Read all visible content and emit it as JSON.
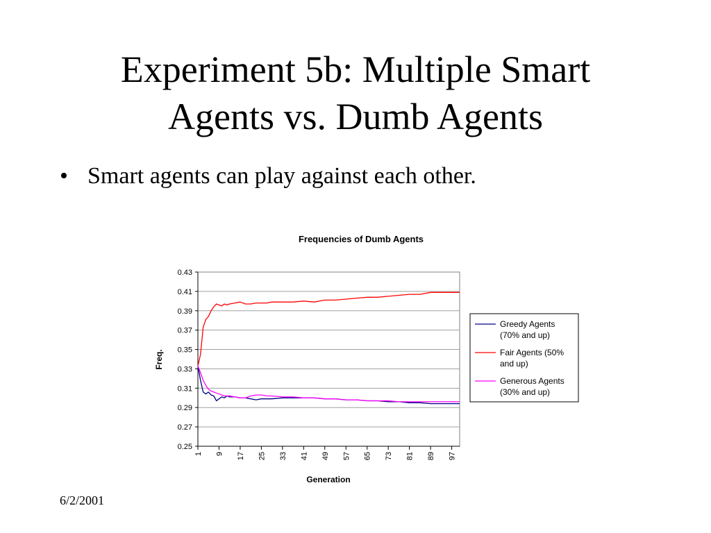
{
  "slide": {
    "title_line1": "Experiment 5b: Multiple Smart",
    "title_line2": "Agents vs. Dumb Agents",
    "bullet_marker": "•",
    "bullet": "Smart agents can play against each other.",
    "footer_date": "6/2/2001"
  },
  "chart_data": {
    "type": "line",
    "title": "Frequencies of Dumb Agents",
    "xlabel": "Generation",
    "ylabel": "Freq.",
    "xlim": [
      1,
      100
    ],
    "ylim": [
      0.25,
      0.43
    ],
    "yticks": [
      "0.25",
      "0.27",
      "0.29",
      "0.31",
      "0.33",
      "0.35",
      "0.37",
      "0.39",
      "0.41",
      "0.43"
    ],
    "xtick_labels": [
      "1",
      "9",
      "17",
      "25",
      "33",
      "41",
      "49",
      "57",
      "65",
      "73",
      "81",
      "89",
      "97"
    ],
    "grid": true,
    "legend_position": "right",
    "series": [
      {
        "name": "Greedy Agents (70% and up)",
        "color": "#000080",
        "x": [
          1,
          2,
          3,
          4,
          5,
          6,
          7,
          8,
          9,
          10,
          11,
          12,
          13,
          15,
          17,
          19,
          21,
          23,
          25,
          27,
          29,
          33,
          37,
          41,
          45,
          49,
          53,
          57,
          61,
          65,
          69,
          73,
          77,
          81,
          85,
          89,
          93,
          97,
          100
        ],
        "y": [
          0.333,
          0.318,
          0.306,
          0.304,
          0.306,
          0.303,
          0.302,
          0.297,
          0.299,
          0.301,
          0.3,
          0.302,
          0.301,
          0.301,
          0.3,
          0.3,
          0.299,
          0.298,
          0.299,
          0.299,
          0.299,
          0.3,
          0.3,
          0.3,
          0.3,
          0.299,
          0.299,
          0.298,
          0.298,
          0.297,
          0.297,
          0.296,
          0.296,
          0.295,
          0.295,
          0.294,
          0.294,
          0.294,
          0.294
        ]
      },
      {
        "name": "Fair Agents (50% and up)",
        "color": "#ff0000",
        "x": [
          1,
          2,
          3,
          4,
          5,
          6,
          7,
          8,
          9,
          10,
          11,
          12,
          13,
          15,
          17,
          19,
          21,
          23,
          25,
          27,
          29,
          33,
          37,
          41,
          45,
          49,
          53,
          57,
          61,
          65,
          69,
          73,
          77,
          81,
          85,
          89,
          93,
          97,
          100
        ],
        "y": [
          0.333,
          0.345,
          0.373,
          0.381,
          0.384,
          0.39,
          0.394,
          0.397,
          0.396,
          0.395,
          0.397,
          0.396,
          0.397,
          0.398,
          0.399,
          0.397,
          0.397,
          0.398,
          0.398,
          0.398,
          0.399,
          0.399,
          0.399,
          0.4,
          0.399,
          0.401,
          0.401,
          0.402,
          0.403,
          0.404,
          0.404,
          0.405,
          0.406,
          0.407,
          0.407,
          0.409,
          0.409,
          0.409,
          0.409
        ]
      },
      {
        "name": "Generous Agents (30% and up)",
        "color": "#ff00ff",
        "x": [
          1,
          2,
          3,
          4,
          5,
          6,
          7,
          8,
          9,
          10,
          11,
          12,
          13,
          15,
          17,
          19,
          21,
          23,
          25,
          27,
          29,
          33,
          37,
          41,
          45,
          49,
          53,
          57,
          61,
          65,
          69,
          73,
          77,
          81,
          85,
          89,
          93,
          97,
          100
        ],
        "y": [
          0.333,
          0.326,
          0.318,
          0.313,
          0.309,
          0.307,
          0.306,
          0.305,
          0.304,
          0.303,
          0.302,
          0.302,
          0.302,
          0.301,
          0.3,
          0.3,
          0.302,
          0.303,
          0.303,
          0.302,
          0.302,
          0.301,
          0.301,
          0.3,
          0.3,
          0.299,
          0.299,
          0.298,
          0.298,
          0.297,
          0.297,
          0.297,
          0.296,
          0.296,
          0.296,
          0.296,
          0.296,
          0.296,
          0.296
        ]
      }
    ]
  }
}
